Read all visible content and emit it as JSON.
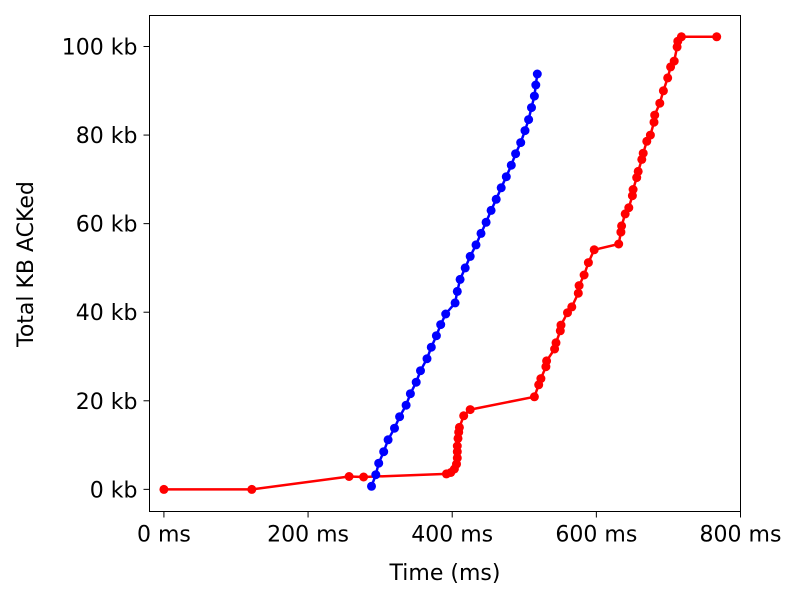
{
  "chart_data": {
    "type": "line",
    "title": "",
    "xlabel": "Time (ms)",
    "ylabel": "Total KB ACKed",
    "xlim": [
      -20,
      800
    ],
    "ylim": [
      -5,
      107
    ],
    "grid": false,
    "legend": "none",
    "xticks": [
      {
        "value": 0,
        "label": "0 ms"
      },
      {
        "value": 200,
        "label": "200 ms"
      },
      {
        "value": 400,
        "label": "400 ms"
      },
      {
        "value": 600,
        "label": "600 ms"
      },
      {
        "value": 800,
        "label": "800 ms"
      }
    ],
    "yticks": [
      {
        "value": 0,
        "label": "0 kb"
      },
      {
        "value": 20,
        "label": "20 kb"
      },
      {
        "value": 40,
        "label": "40 kb"
      },
      {
        "value": 60,
        "label": "60 kb"
      },
      {
        "value": 80,
        "label": "80 kb"
      },
      {
        "value": 100,
        "label": "100 kb"
      }
    ],
    "series": [
      {
        "color": "#ff0000",
        "points": [
          [
            0,
            0
          ],
          [
            122,
            0
          ],
          [
            257,
            2.9
          ],
          [
            277,
            2.8
          ],
          [
            392,
            3.5
          ],
          [
            398,
            3.8
          ],
          [
            403,
            4.6
          ],
          [
            406,
            5.7
          ],
          [
            407,
            7.1
          ],
          [
            407,
            8.5
          ],
          [
            407,
            9.8
          ],
          [
            408,
            11.5
          ],
          [
            409,
            12.9
          ],
          [
            410,
            14.0
          ],
          [
            416,
            16.6
          ],
          [
            425,
            18.0
          ],
          [
            514,
            20.9
          ],
          [
            520,
            23.6
          ],
          [
            523,
            25.0
          ],
          [
            530,
            27.7
          ],
          [
            531,
            29.0
          ],
          [
            542,
            31.7
          ],
          [
            544,
            33.1
          ],
          [
            550,
            35.8
          ],
          [
            551,
            37.1
          ],
          [
            560,
            39.9
          ],
          [
            566,
            41.2
          ],
          [
            575,
            44.3
          ],
          [
            576,
            46.0
          ],
          [
            583,
            48.4
          ],
          [
            589,
            51.2
          ],
          [
            597,
            54.1
          ],
          [
            631,
            55.4
          ],
          [
            634,
            58.1
          ],
          [
            635,
            59.5
          ],
          [
            640,
            62.2
          ],
          [
            645,
            63.6
          ],
          [
            650,
            66.3
          ],
          [
            651,
            67.7
          ],
          [
            656,
            70.4
          ],
          [
            658,
            71.8
          ],
          [
            663,
            74.5
          ],
          [
            665,
            75.9
          ],
          [
            670,
            78.6
          ],
          [
            675,
            80.0
          ],
          [
            680,
            82.9
          ],
          [
            681,
            84.5
          ],
          [
            688,
            87.2
          ],
          [
            693,
            90.0
          ],
          [
            699,
            92.9
          ],
          [
            703,
            95.4
          ],
          [
            708,
            96.7
          ],
          [
            712,
            99.9
          ],
          [
            713,
            101.2
          ],
          [
            718,
            102.2
          ],
          [
            767,
            102.2
          ]
        ]
      },
      {
        "color": "#0000ff",
        "points": [
          [
            288,
            0.7
          ],
          [
            294,
            3.3
          ],
          [
            298,
            5.9
          ],
          [
            305,
            8.5
          ],
          [
            311,
            11.2
          ],
          [
            320,
            13.8
          ],
          [
            327,
            16.4
          ],
          [
            336,
            19.0
          ],
          [
            342,
            21.6
          ],
          [
            350,
            24.2
          ],
          [
            356,
            26.8
          ],
          [
            365,
            29.5
          ],
          [
            371,
            32.1
          ],
          [
            378,
            34.7
          ],
          [
            384,
            37.2
          ],
          [
            391,
            39.6
          ],
          [
            404,
            42.1
          ],
          [
            407,
            44.7
          ],
          [
            411,
            47.4
          ],
          [
            418,
            50.0
          ],
          [
            425,
            52.6
          ],
          [
            433,
            55.2
          ],
          [
            440,
            57.8
          ],
          [
            447,
            60.3
          ],
          [
            454,
            63.0
          ],
          [
            461,
            65.5
          ],
          [
            468,
            68.1
          ],
          [
            475,
            70.6
          ],
          [
            482,
            73.2
          ],
          [
            488,
            75.8
          ],
          [
            495,
            78.3
          ],
          [
            501,
            81.0
          ],
          [
            506,
            83.5
          ],
          [
            510,
            86.2
          ],
          [
            514,
            88.8
          ],
          [
            516,
            91.3
          ],
          [
            518,
            93.8
          ]
        ]
      }
    ]
  }
}
